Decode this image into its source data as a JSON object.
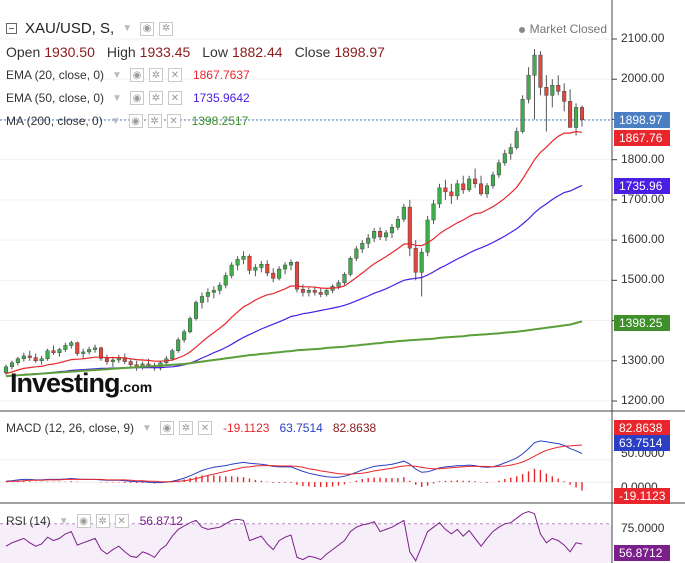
{
  "header": {
    "symbol": "XAU/USD, S,",
    "market_status": "Market Closed",
    "ohlc": [
      {
        "label": "Open",
        "value": "1930.50"
      },
      {
        "label": "High",
        "value": "1933.45"
      },
      {
        "label": "Low",
        "value": "1882.44"
      },
      {
        "label": "Close",
        "value": "1898.97"
      }
    ]
  },
  "indicators": [
    {
      "label": "EMA (20, close, 0)",
      "value": "1867.7637",
      "color": "#e8262c"
    },
    {
      "label": "EMA (50, close, 0)",
      "value": "1735.9642",
      "color": "#4b1ee3"
    },
    {
      "label": "MA (200, close, 0)",
      "value": "1398.2517",
      "color": "#3f8f2a"
    }
  ],
  "macd_panel": {
    "label": "MACD (12, 26, close, 9)",
    "values": [
      {
        "value": "-19.1123",
        "color": "#e8262c"
      },
      {
        "value": "63.7514",
        "color": "#2a3fc4"
      },
      {
        "value": "82.8638",
        "color": "#8b1a1a"
      }
    ],
    "axis_labels": [
      "50.0000",
      "0.0000"
    ],
    "tags": [
      {
        "value": "82.8638",
        "color": "#e8262c"
      },
      {
        "value": "63.7514",
        "color": "#2a3fc4"
      },
      {
        "value": "-19.1123",
        "color": "#e8262c"
      }
    ]
  },
  "rsi_panel": {
    "label": "RSI (14)",
    "value": "56.8712",
    "value_color": "#7b1f8a",
    "axis_labels": [
      "75.0000"
    ],
    "tag": {
      "value": "56.8712",
      "color": "#7b1f8a"
    }
  },
  "price_axis": {
    "labels": [
      "2100.00",
      "2000.00",
      "1900.00",
      "1800.00",
      "1700.00",
      "1600.00",
      "1500.00",
      "1400.00",
      "1300.00",
      "1200.00"
    ],
    "tags": [
      {
        "value": "1898.97",
        "color": "#4a7fc4"
      },
      {
        "value": "1867.76",
        "color": "#e8262c"
      },
      {
        "value": "1735.96",
        "color": "#4b1ee3"
      },
      {
        "value": "1398.25",
        "color": "#3f8f2a"
      }
    ]
  },
  "logo": {
    "text": "Investing",
    "suffix": ".com"
  },
  "icons": {
    "eye": "eye-icon",
    "settings": "gear-icon",
    "close": "close-icon"
  },
  "colors": {
    "up": "#3fae4a",
    "down": "#e0473f",
    "ema20": "#e8262c",
    "ema50": "#4b1ee3",
    "ma200": "#5c9e3a"
  },
  "chart_data": {
    "type": "candlestick",
    "ylim": [
      1200,
      2100
    ],
    "yticks": [
      1200,
      1300,
      1400,
      1500,
      1600,
      1700,
      1800,
      1900,
      2000,
      2100
    ],
    "last_price": 1898.97,
    "candles": [
      [
        1270,
        1290,
        1265,
        1285
      ],
      [
        1285,
        1300,
        1278,
        1295
      ],
      [
        1295,
        1310,
        1288,
        1305
      ],
      [
        1305,
        1320,
        1298,
        1312
      ],
      [
        1312,
        1325,
        1300,
        1308
      ],
      [
        1308,
        1318,
        1295,
        1300
      ],
      [
        1300,
        1312,
        1290,
        1305
      ],
      [
        1305,
        1330,
        1300,
        1325
      ],
      [
        1325,
        1338,
        1315,
        1320
      ],
      [
        1320,
        1332,
        1310,
        1328
      ],
      [
        1328,
        1345,
        1322,
        1338
      ],
      [
        1338,
        1350,
        1330,
        1345
      ],
      [
        1345,
        1348,
        1312,
        1318
      ],
      [
        1318,
        1330,
        1305,
        1322
      ],
      [
        1322,
        1335,
        1316,
        1328
      ],
      [
        1328,
        1340,
        1320,
        1332
      ],
      [
        1332,
        1335,
        1300,
        1306
      ],
      [
        1306,
        1315,
        1290,
        1298
      ],
      [
        1298,
        1310,
        1285,
        1302
      ],
      [
        1302,
        1315,
        1295,
        1308
      ],
      [
        1308,
        1318,
        1292,
        1298
      ],
      [
        1298,
        1305,
        1280,
        1290
      ],
      [
        1290,
        1300,
        1275,
        1285
      ],
      [
        1285,
        1298,
        1278,
        1292
      ],
      [
        1292,
        1305,
        1282,
        1288
      ],
      [
        1288,
        1295,
        1275,
        1282
      ],
      [
        1282,
        1300,
        1276,
        1295
      ],
      [
        1295,
        1312,
        1288,
        1305
      ],
      [
        1305,
        1330,
        1300,
        1325
      ],
      [
        1325,
        1358,
        1320,
        1352
      ],
      [
        1352,
        1378,
        1345,
        1372
      ],
      [
        1372,
        1410,
        1368,
        1405
      ],
      [
        1405,
        1450,
        1400,
        1445
      ],
      [
        1445,
        1470,
        1430,
        1460
      ],
      [
        1460,
        1480,
        1445,
        1470
      ],
      [
        1470,
        1485,
        1455,
        1475
      ],
      [
        1475,
        1495,
        1465,
        1488
      ],
      [
        1488,
        1520,
        1480,
        1512
      ],
      [
        1512,
        1545,
        1505,
        1538
      ],
      [
        1538,
        1560,
        1525,
        1552
      ],
      [
        1552,
        1572,
        1540,
        1560
      ],
      [
        1560,
        1565,
        1515,
        1525
      ],
      [
        1525,
        1540,
        1510,
        1532
      ],
      [
        1532,
        1548,
        1520,
        1540
      ],
      [
        1540,
        1550,
        1510,
        1518
      ],
      [
        1518,
        1530,
        1495,
        1505
      ],
      [
        1505,
        1535,
        1500,
        1528
      ],
      [
        1528,
        1545,
        1515,
        1538
      ],
      [
        1538,
        1552,
        1525,
        1545
      ],
      [
        1545,
        1548,
        1470,
        1478
      ],
      [
        1478,
        1490,
        1460,
        1470
      ],
      [
        1470,
        1482,
        1460,
        1475
      ],
      [
        1475,
        1485,
        1462,
        1470
      ],
      [
        1470,
        1480,
        1458,
        1465
      ],
      [
        1465,
        1480,
        1460,
        1475
      ],
      [
        1475,
        1490,
        1468,
        1485
      ],
      [
        1485,
        1500,
        1478,
        1494
      ],
      [
        1494,
        1520,
        1488,
        1515
      ],
      [
        1515,
        1560,
        1510,
        1555
      ],
      [
        1555,
        1585,
        1548,
        1578
      ],
      [
        1578,
        1600,
        1568,
        1592
      ],
      [
        1592,
        1615,
        1580,
        1605
      ],
      [
        1605,
        1630,
        1595,
        1622
      ],
      [
        1622,
        1632,
        1600,
        1608
      ],
      [
        1608,
        1625,
        1598,
        1618
      ],
      [
        1618,
        1640,
        1605,
        1632
      ],
      [
        1632,
        1660,
        1625,
        1652
      ],
      [
        1652,
        1690,
        1645,
        1682
      ],
      [
        1682,
        1700,
        1560,
        1580
      ],
      [
        1580,
        1600,
        1500,
        1520
      ],
      [
        1520,
        1580,
        1460,
        1570
      ],
      [
        1570,
        1660,
        1560,
        1650
      ],
      [
        1650,
        1700,
        1640,
        1690
      ],
      [
        1690,
        1740,
        1680,
        1730
      ],
      [
        1730,
        1750,
        1700,
        1720
      ],
      [
        1720,
        1740,
        1690,
        1710
      ],
      [
        1710,
        1750,
        1700,
        1740
      ],
      [
        1740,
        1760,
        1715,
        1725
      ],
      [
        1725,
        1760,
        1720,
        1752
      ],
      [
        1752,
        1778,
        1730,
        1740
      ],
      [
        1740,
        1760,
        1710,
        1715
      ],
      [
        1715,
        1742,
        1705,
        1735
      ],
      [
        1735,
        1770,
        1728,
        1762
      ],
      [
        1762,
        1800,
        1755,
        1792
      ],
      [
        1792,
        1825,
        1785,
        1815
      ],
      [
        1815,
        1840,
        1800,
        1830
      ],
      [
        1830,
        1880,
        1825,
        1870
      ],
      [
        1870,
        1960,
        1865,
        1950
      ],
      [
        1950,
        2030,
        1940,
        2010
      ],
      [
        2010,
        2075,
        1900,
        2060
      ],
      [
        2060,
        2070,
        1960,
        1980
      ],
      [
        1980,
        2010,
        1870,
        1960
      ],
      [
        1960,
        2000,
        1930,
        1985
      ],
      [
        1985,
        2010,
        1960,
        1970
      ],
      [
        1970,
        1990,
        1920,
        1945
      ],
      [
        1945,
        1975,
        1880,
        1880
      ],
      [
        1880,
        1940,
        1860,
        1930
      ],
      [
        1930,
        1935,
        1882,
        1899
      ]
    ],
    "series": [
      {
        "name": "EMA (20, close, 0)",
        "values": [
          1268,
          1272,
          1277,
          1281,
          1283,
          1285,
          1286,
          1290,
          1292,
          1295,
          1299,
          1303,
          1304,
          1305,
          1307,
          1309,
          1309,
          1308,
          1308,
          1308,
          1307,
          1305,
          1303,
          1302,
          1301,
          1299,
          1299,
          1300,
          1302,
          1307,
          1313,
          1322,
          1334,
          1347,
          1359,
          1370,
          1381,
          1393,
          1408,
          1421,
          1434,
          1442,
          1451,
          1458,
          1464,
          1467,
          1473,
          1479,
          1486,
          1486,
          1484,
          1484,
          1483,
          1481,
          1480,
          1481,
          1482,
          1486,
          1496,
          1507,
          1518,
          1530,
          1541,
          1550,
          1559,
          1569,
          1579,
          1590,
          1591,
          1587,
          1586,
          1593,
          1603,
          1616,
          1626,
          1634,
          1643,
          1650,
          1659,
          1666,
          1668,
          1675,
          1683,
          1693,
          1704,
          1717,
          1731,
          1752,
          1776,
          1800,
          1818,
          1831,
          1846,
          1858,
          1866,
          1866,
          1870,
          1868
        ]
      },
      {
        "name": "EMA (50, close, 0)",
        "values": [
          1262,
          1263,
          1264,
          1266,
          1267,
          1268,
          1268,
          1270,
          1271,
          1273,
          1274,
          1276,
          1277,
          1278,
          1279,
          1280,
          1281,
          1281,
          1282,
          1282,
          1283,
          1283,
          1283,
          1283,
          1283,
          1283,
          1283,
          1284,
          1285,
          1287,
          1290,
          1294,
          1300,
          1307,
          1313,
          1320,
          1326,
          1333,
          1341,
          1350,
          1358,
          1365,
          1372,
          1379,
          1385,
          1391,
          1397,
          1403,
          1410,
          1413,
          1417,
          1419,
          1422,
          1425,
          1428,
          1431,
          1434,
          1438,
          1443,
          1449,
          1455,
          1461,
          1468,
          1473,
          1479,
          1486,
          1493,
          1500,
          1503,
          1505,
          1507,
          1513,
          1521,
          1530,
          1537,
          1545,
          1553,
          1560,
          1568,
          1575,
          1581,
          1587,
          1594,
          1602,
          1610,
          1619,
          1628,
          1640,
          1653,
          1668,
          1680,
          1690,
          1701,
          1710,
          1718,
          1722,
          1729,
          1736
        ]
      },
      {
        "name": "MA (200, close, 0)",
        "values": [
          1262,
          1263,
          1264,
          1265,
          1266,
          1267,
          1268,
          1269,
          1270,
          1271,
          1272,
          1273,
          1274,
          1275,
          1276,
          1277,
          1278,
          1279,
          1280,
          1281,
          1282,
          1283,
          1284,
          1285,
          1286,
          1287,
          1288,
          1289,
          1290,
          1291,
          1292,
          1294,
          1296,
          1298,
          1300,
          1302,
          1304,
          1306,
          1308,
          1310,
          1312,
          1314,
          1315,
          1317,
          1318,
          1320,
          1321,
          1323,
          1324,
          1326,
          1327,
          1328,
          1329,
          1330,
          1332,
          1333,
          1334,
          1335,
          1337,
          1338,
          1340,
          1341,
          1343,
          1344,
          1346,
          1347,
          1349,
          1350,
          1351,
          1352,
          1353,
          1354,
          1355,
          1357,
          1358,
          1359,
          1360,
          1361,
          1363,
          1364,
          1365,
          1366,
          1367,
          1368,
          1370,
          1371,
          1372,
          1374,
          1376,
          1378,
          1380,
          1382,
          1384,
          1386,
          1388,
          1390,
          1394,
          1398
        ]
      }
    ],
    "macd": {
      "ylim": [
        -40,
        150
      ],
      "macd": [
        2,
        3,
        5,
        6,
        6,
        5,
        5,
        6,
        6,
        6,
        7,
        8,
        7,
        6,
        6,
        6,
        5,
        4,
        4,
        4,
        3,
        2,
        1,
        1,
        0,
        -1,
        -1,
        0,
        2,
        5,
        9,
        14,
        20,
        26,
        30,
        33,
        35,
        37,
        40,
        42,
        44,
        42,
        41,
        40,
        38,
        35,
        34,
        34,
        34,
        29,
        24,
        20,
        17,
        14,
        12,
        11,
        11,
        13,
        17,
        22,
        27,
        31,
        35,
        37,
        38,
        40,
        43,
        47,
        40,
        29,
        22,
        23,
        27,
        32,
        34,
        35,
        37,
        37,
        38,
        37,
        34,
        33,
        34,
        38,
        43,
        48,
        54,
        63,
        75,
        88,
        92,
        90,
        88,
        86,
        82,
        75,
        70,
        64
      ],
      "signal": [
        1,
        2,
        2,
        3,
        4,
        4,
        4,
        5,
        5,
        5,
        6,
        6,
        6,
        6,
        6,
        6,
        6,
        5,
        5,
        5,
        5,
        4,
        3,
        3,
        2,
        2,
        1,
        1,
        1,
        2,
        3,
        5,
        8,
        11,
        15,
        18,
        21,
        24,
        27,
        30,
        33,
        34,
        36,
        37,
        37,
        37,
        36,
        36,
        36,
        35,
        33,
        30,
        28,
        25,
        23,
        21,
        19,
        18,
        18,
        19,
        20,
        22,
        25,
        27,
        29,
        31,
        34,
        36,
        37,
        35,
        33,
        31,
        30,
        30,
        31,
        32,
        33,
        34,
        35,
        35,
        35,
        35,
        34,
        35,
        36,
        38,
        41,
        45,
        51,
        58,
        65,
        71,
        75,
        78,
        80,
        81,
        82,
        83
      ],
      "histogram": [
        1,
        1,
        3,
        3,
        2,
        1,
        1,
        1,
        1,
        1,
        1,
        2,
        1,
        0,
        0,
        0,
        -1,
        -1,
        -1,
        -1,
        -2,
        -2,
        -2,
        -2,
        -2,
        -3,
        -2,
        -1,
        1,
        3,
        6,
        9,
        12,
        15,
        15,
        15,
        14,
        13,
        13,
        12,
        11,
        8,
        5,
        3,
        1,
        -2,
        -2,
        -2,
        -2,
        -6,
        -9,
        -10,
        -11,
        -11,
        -11,
        -10,
        -8,
        -5,
        -1,
        3,
        7,
        9,
        10,
        10,
        9,
        9,
        9,
        11,
        3,
        -6,
        -11,
        -8,
        -3,
        2,
        3,
        3,
        4,
        3,
        3,
        2,
        -1,
        -2,
        0,
        3,
        7,
        10,
        13,
        18,
        24,
        30,
        27,
        19,
        13,
        8,
        2,
        -6,
        -12,
        -19
      ]
    },
    "rsi": {
      "ylim": [
        40,
        90
      ],
      "values": [
        55,
        58,
        60,
        62,
        58,
        55,
        57,
        63,
        60,
        62,
        66,
        68,
        56,
        58,
        60,
        62,
        52,
        48,
        52,
        55,
        50,
        46,
        45,
        50,
        48,
        45,
        52,
        56,
        64,
        70,
        73,
        76,
        78,
        72,
        70,
        71,
        72,
        75,
        78,
        79,
        78,
        60,
        62,
        64,
        57,
        52,
        60,
        63,
        65,
        45,
        43,
        46,
        45,
        43,
        48,
        52,
        56,
        60,
        68,
        72,
        74,
        75,
        77,
        68,
        70,
        72,
        75,
        78,
        50,
        42,
        55,
        68,
        72,
        76,
        70,
        66,
        70,
        64,
        69,
        62,
        55,
        62,
        68,
        72,
        75,
        76,
        80,
        84,
        86,
        84,
        66,
        58,
        62,
        60,
        56,
        50,
        58,
        57
      ]
    }
  }
}
